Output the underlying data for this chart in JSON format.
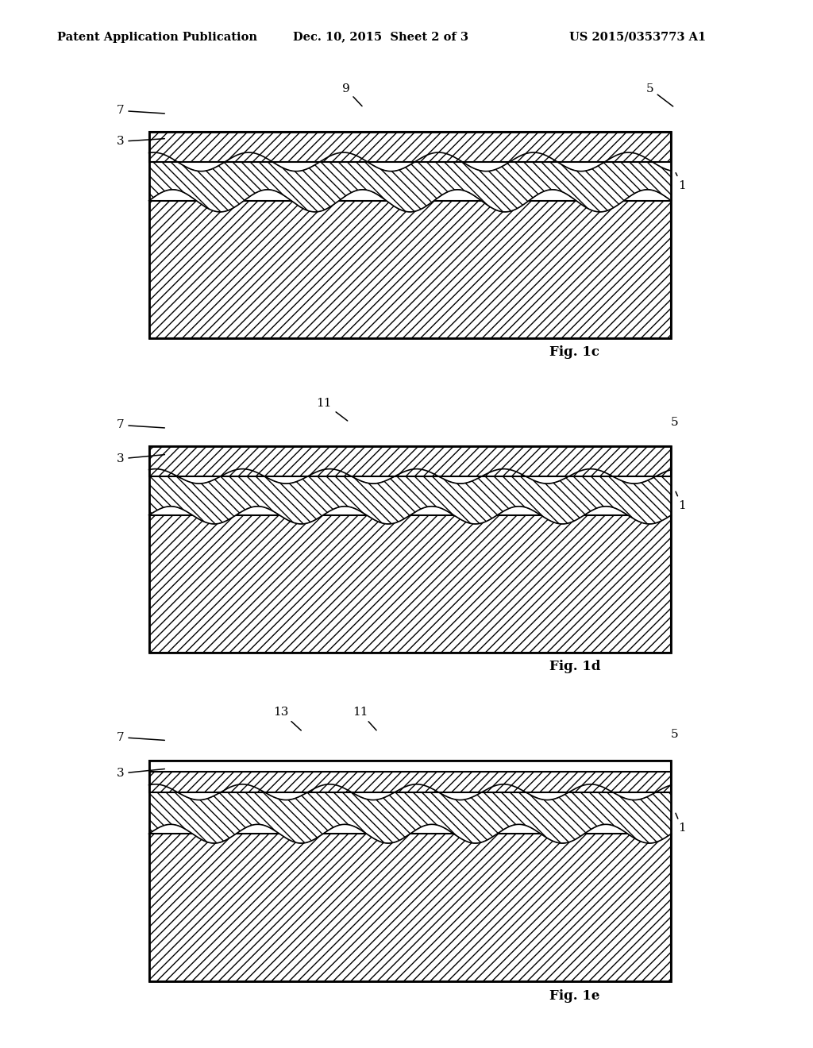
{
  "bg_color": "#ffffff",
  "header_left": "Patent Application Publication",
  "header_center": "Dec. 10, 2015  Sheet 2 of 3",
  "header_right": "US 2015/0353773 A1",
  "fig1c": {
    "name": "Fig. 1c",
    "labels": {
      "9": {
        "txt": [
          0.415,
          0.93
        ],
        "arr": [
          0.44,
          0.865
        ]
      },
      "5": {
        "txt": [
          0.84,
          0.93
        ],
        "arr": [
          0.875,
          0.865
        ]
      },
      "7": {
        "txt": [
          0.1,
          0.855
        ],
        "arr": [
          0.165,
          0.845
        ]
      },
      "3": {
        "txt": [
          0.1,
          0.75
        ],
        "arr": [
          0.165,
          0.76
        ]
      },
      "1": {
        "txt": [
          0.885,
          0.6
        ],
        "arr": [
          0.875,
          0.65
        ]
      }
    }
  },
  "fig1d": {
    "name": "Fig. 1d",
    "labels": {
      "11": {
        "txt": [
          0.385,
          0.93
        ],
        "arr": [
          0.42,
          0.865
        ]
      },
      "5": {
        "txt": [
          0.875,
          0.865
        ],
        "arr": [
          0.875,
          0.865
        ]
      },
      "7": {
        "txt": [
          0.1,
          0.855
        ],
        "arr": [
          0.165,
          0.845
        ]
      },
      "3": {
        "txt": [
          0.1,
          0.74
        ],
        "arr": [
          0.165,
          0.755
        ]
      },
      "1": {
        "txt": [
          0.885,
          0.58
        ],
        "arr": [
          0.875,
          0.635
        ]
      }
    }
  },
  "fig1e": {
    "name": "Fig. 1e",
    "labels": {
      "13": {
        "txt": [
          0.325,
          0.935
        ],
        "arr": [
          0.355,
          0.872
        ]
      },
      "11": {
        "txt": [
          0.435,
          0.935
        ],
        "arr": [
          0.46,
          0.872
        ]
      },
      "5": {
        "txt": [
          0.875,
          0.865
        ],
        "arr": [
          0.875,
          0.865
        ]
      },
      "7": {
        "txt": [
          0.1,
          0.855
        ],
        "arr": [
          0.165,
          0.845
        ]
      },
      "3": {
        "txt": [
          0.1,
          0.74
        ],
        "arr": [
          0.165,
          0.755
        ]
      },
      "1": {
        "txt": [
          0.885,
          0.565
        ],
        "arr": [
          0.875,
          0.62
        ]
      }
    }
  }
}
